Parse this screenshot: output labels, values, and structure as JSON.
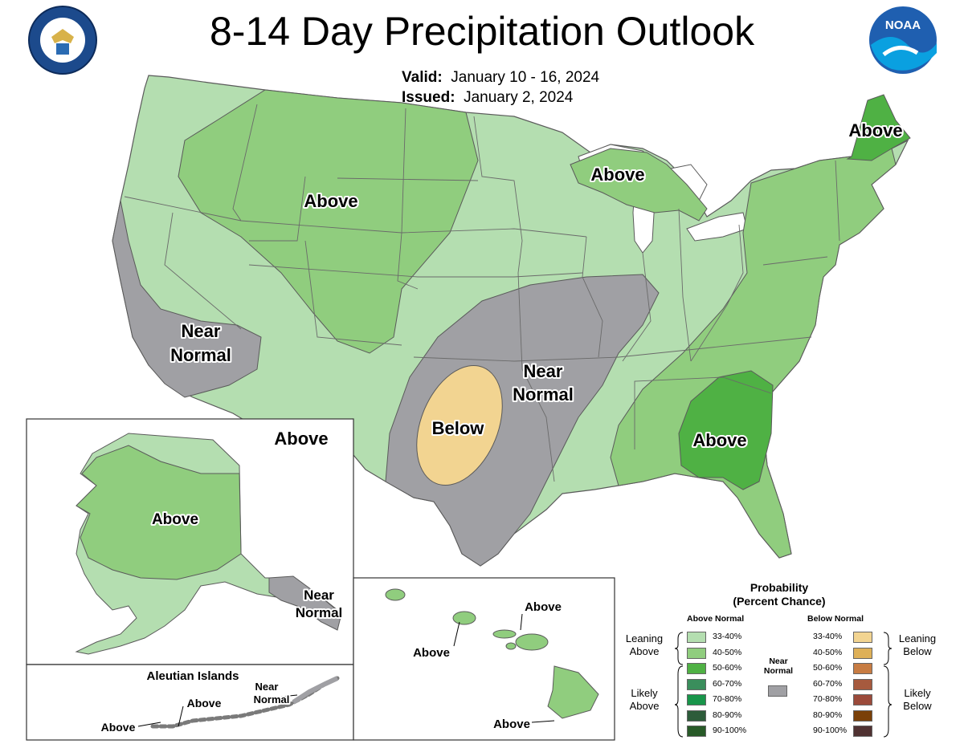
{
  "header": {
    "title": "8-14 Day Precipitation Outlook",
    "valid_label": "Valid:",
    "valid_value": "January 10 - 16, 2024",
    "issued_label": "Issued:",
    "issued_value": "January 2, 2024"
  },
  "logos": {
    "left": "department-of-commerce-seal",
    "right": "noaa-logo",
    "noaa_text": "NOAA"
  },
  "regions": {
    "northwest_above": "Above",
    "great_lakes_above": "Above",
    "maine_above": "Above",
    "california_near_normal": "Near Normal",
    "southwest_above": "Above",
    "plains_near_normal": "Near Normal",
    "texas_below": "Below",
    "southeast_above": "Above",
    "alaska_above": "Above",
    "alaska_near_normal": "Near Normal",
    "aleutian_title": "Aleutian Islands",
    "aleutian_above_1": "Above",
    "aleutian_above_2": "Above",
    "aleutian_near_normal": "Near Normal",
    "hawaii_above_1": "Above",
    "hawaii_above_2": "Above",
    "hawaii_above_3": "Above"
  },
  "legend": {
    "title": "Probability (Percent Chance)",
    "above_header": "Above Normal",
    "below_header": "Below Normal",
    "near_header": "Near Normal",
    "leaning_above": "Leaning Above",
    "likely_above": "Likely Above",
    "leaning_below": "Leaning Below",
    "likely_below": "Likely Below",
    "above_rows": [
      {
        "label": "33-40%",
        "color": "#b4deb0"
      },
      {
        "label": "40-50%",
        "color": "#90cd7e"
      },
      {
        "label": "50-60%",
        "color": "#4fb144"
      },
      {
        "label": "60-70%",
        "color": "#3a8e5c"
      },
      {
        "label": "70-80%",
        "color": "#18954a"
      },
      {
        "label": "80-90%",
        "color": "#2d5c3a"
      },
      {
        "label": "90-100%",
        "color": "#285a28"
      }
    ],
    "below_rows": [
      {
        "label": "33-40%",
        "color": "#f2d491"
      },
      {
        "label": "40-50%",
        "color": "#deb058"
      },
      {
        "label": "50-60%",
        "color": "#c77c43"
      },
      {
        "label": "60-70%",
        "color": "#a65a3e"
      },
      {
        "label": "70-80%",
        "color": "#9b4a3a"
      },
      {
        "label": "80-90%",
        "color": "#7a4008"
      },
      {
        "label": "90-100%",
        "color": "#503232"
      }
    ],
    "near_color": "#a0a0a4"
  },
  "colors": {
    "lean_above": "#b4deb0",
    "above_40_50": "#90cd7e",
    "above_50_60": "#4fb144",
    "near_normal": "#a0a0a4",
    "lean_below": "#f2d491",
    "state_border": "#5a5a5a"
  }
}
